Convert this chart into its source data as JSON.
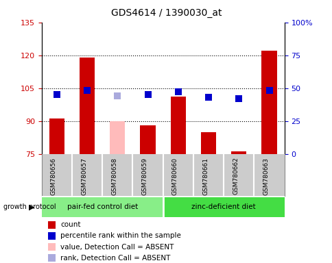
{
  "title": "GDS4614 / 1390030_at",
  "samples": [
    "GSM780656",
    "GSM780657",
    "GSM780658",
    "GSM780659",
    "GSM780660",
    "GSM780661",
    "GSM780662",
    "GSM780663"
  ],
  "count_values": [
    91,
    119,
    null,
    88,
    101,
    85,
    76,
    122
  ],
  "count_absent": [
    null,
    null,
    90,
    null,
    null,
    null,
    null,
    null
  ],
  "rank_values": [
    45,
    48,
    null,
    45,
    47,
    43,
    42,
    48
  ],
  "rank_absent": [
    null,
    null,
    44,
    null,
    null,
    null,
    null,
    null
  ],
  "ylim_left": [
    75,
    135
  ],
  "ylim_right": [
    0,
    100
  ],
  "yticks_left": [
    75,
    90,
    105,
    120,
    135
  ],
  "yticks_right": [
    0,
    25,
    50,
    75,
    100
  ],
  "ytick_labels_right": [
    "0",
    "25",
    "50",
    "75",
    "100%"
  ],
  "groups": [
    {
      "label": "pair-fed control diet",
      "indices": [
        0,
        1,
        2,
        3
      ],
      "color": "#88ee88"
    },
    {
      "label": "zinc-deficient diet",
      "indices": [
        4,
        5,
        6,
        7
      ],
      "color": "#44dd44"
    }
  ],
  "group_protocol_label": "growth protocol",
  "bar_width": 0.5,
  "marker_size": 7,
  "count_color": "#cc0000",
  "count_absent_color": "#ffbbbb",
  "rank_color": "#0000cc",
  "rank_absent_color": "#aaaadd",
  "sample_bg_color": "#cccccc",
  "sample_border_color": "#999999",
  "plot_bg": "#ffffff",
  "legend_items": [
    {
      "color": "#cc0000",
      "label": "count"
    },
    {
      "color": "#0000cc",
      "label": "percentile rank within the sample"
    },
    {
      "color": "#ffbbbb",
      "label": "value, Detection Call = ABSENT"
    },
    {
      "color": "#aaaadd",
      "label": "rank, Detection Call = ABSENT"
    }
  ]
}
